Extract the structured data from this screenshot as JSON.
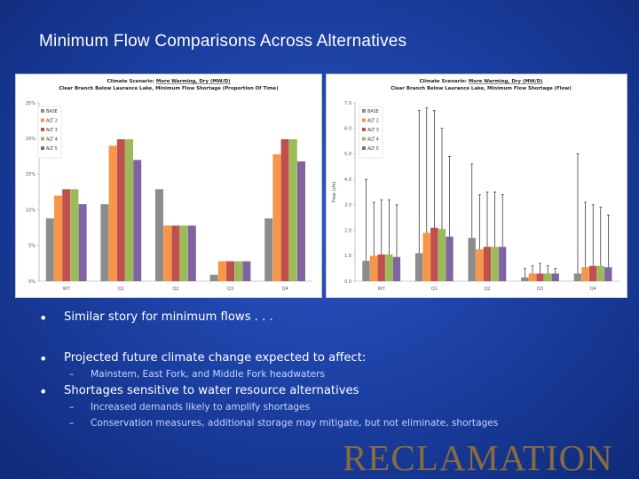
{
  "slide": {
    "title": "Minimum Flow Comparisons Across Alternatives",
    "bullets": [
      {
        "text": "Similar story for minimum flows . . .",
        "subs": []
      },
      {
        "text": "Projected future climate change expected to affect:",
        "subs": [
          "Mainstem, East Fork, and Middle Fork headwaters"
        ]
      },
      {
        "text": "Shortages sensitive to water resource alternatives",
        "subs": [
          "Increased demands likely to amplify shortages",
          "Conservation measures, additional storage may mitigate, but not eliminate, shortages"
        ]
      }
    ],
    "bullet_glyph": "•",
    "sub_glyph": "–",
    "logo_text": "RECLAMATION"
  },
  "colors": {
    "BASE": "#8c8c8c",
    "ALT 2": "#f79646",
    "ALT 3": "#c0504d",
    "ALT 4": "#9bbb59",
    "ALT 5": "#8064a2",
    "logo": "#8a6b3e"
  },
  "chart_data": [
    {
      "type": "bar",
      "title_prefix": "Climate Scenario:",
      "title_scenario": "More Warming, Dry (MW/D)",
      "title_line2": "Clear Branch Below Laurance Lake, Minimum Flow Shortage (Proportion Of Time)",
      "ylabel": "",
      "xlabel": "",
      "categories": [
        "WY",
        "Q1",
        "Q2",
        "Q3",
        "Q4"
      ],
      "ylim": [
        0,
        25
      ],
      "yticks": [
        0,
        5,
        10,
        15,
        20,
        25
      ],
      "ytick_labels": [
        "0%",
        "5%",
        "10%",
        "15%",
        "20%",
        "25%"
      ],
      "grid": false,
      "legend_position": "top-left",
      "series": [
        {
          "name": "BASE",
          "values": [
            8.8,
            10.8,
            12.9,
            0.9,
            8.8
          ]
        },
        {
          "name": "ALT 2",
          "values": [
            12.0,
            19.0,
            7.8,
            2.8,
            17.8
          ]
        },
        {
          "name": "ALT 3",
          "values": [
            12.9,
            19.9,
            7.8,
            2.8,
            19.9
          ]
        },
        {
          "name": "ALT 4",
          "values": [
            12.9,
            19.9,
            7.8,
            2.8,
            19.9
          ]
        },
        {
          "name": "ALT 5",
          "values": [
            10.8,
            17.0,
            7.8,
            2.8,
            16.8
          ]
        }
      ]
    },
    {
      "type": "bar",
      "title_prefix": "Climate Scenario:",
      "title_scenario": "More Warming, Dry (MW/D)",
      "title_line2": "Clear Branch Below Laurance Lake, Minimum Flow Shortage (Flow)",
      "ylabel": "Flow (cfs)",
      "xlabel": "",
      "categories": [
        "WY",
        "Q1",
        "Q2",
        "Q3",
        "Q4"
      ],
      "ylim": [
        0,
        7
      ],
      "yticks": [
        0,
        1,
        2,
        3,
        4,
        5,
        6,
        7
      ],
      "ytick_labels": [
        "0.0",
        "1.0",
        "2.0",
        "3.0",
        "4.0",
        "5.0",
        "6.0",
        "7.0"
      ],
      "grid": false,
      "legend_position": "top-left",
      "series": [
        {
          "name": "BASE",
          "values": [
            0.8,
            1.1,
            1.7,
            0.15,
            0.3
          ],
          "error_upper": [
            4.0,
            6.7,
            4.6,
            0.5,
            5.0
          ]
        },
        {
          "name": "ALT 2",
          "values": [
            1.0,
            1.9,
            1.25,
            0.3,
            0.55
          ],
          "error_upper": [
            3.1,
            6.8,
            3.4,
            0.6,
            3.1
          ]
        },
        {
          "name": "ALT 3",
          "values": [
            1.05,
            2.1,
            1.35,
            0.3,
            0.6
          ],
          "error_upper": [
            3.2,
            6.7,
            3.5,
            0.7,
            3.0
          ]
        },
        {
          "name": "ALT 4",
          "values": [
            1.05,
            2.05,
            1.35,
            0.3,
            0.6
          ],
          "error_upper": [
            3.2,
            6.0,
            3.5,
            0.6,
            2.9
          ]
        },
        {
          "name": "ALT 5",
          "values": [
            0.95,
            1.75,
            1.35,
            0.3,
            0.55
          ],
          "error_upper": [
            3.0,
            4.9,
            3.4,
            0.5,
            2.6
          ]
        }
      ]
    }
  ]
}
